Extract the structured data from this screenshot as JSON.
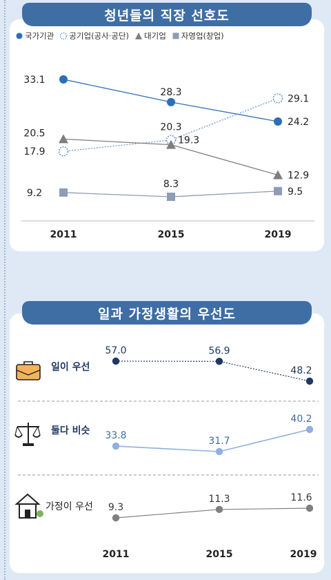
{
  "top_title": "청년들의 직장 선호도",
  "bottom_title": "일과 가정생활의 우선도",
  "chart_data": [
    {
      "type": "line",
      "title": "청년들의 직장 선호도",
      "x": [
        "2011",
        "2015",
        "2019"
      ],
      "series": [
        {
          "name": "국가기관",
          "values": [
            33.1,
            28.3,
            24.2
          ],
          "color": "#2f6db5",
          "marker": "circle"
        },
        {
          "name": "공기업(공사·공단)",
          "values": [
            17.9,
            20.3,
            29.1
          ],
          "color": "#6f96cf",
          "marker": "dotted-circle"
        },
        {
          "name": "대기업",
          "values": [
            20.5,
            19.3,
            12.9
          ],
          "color": "#7f7f7f",
          "marker": "triangle"
        },
        {
          "name": "자영업(창업)",
          "values": [
            9.2,
            8.3,
            9.5
          ],
          "color": "#8e9cb5",
          "marker": "square"
        }
      ],
      "legend": "top"
    },
    {
      "type": "line",
      "title": "일과 가정생활의 우선도",
      "x": [
        "2011",
        "2015",
        "2019"
      ],
      "series": [
        {
          "name": "일이 우선",
          "values": [
            57.0,
            56.9,
            48.2
          ],
          "color": "#1f3864",
          "icon": "briefcase-icon"
        },
        {
          "name": "둘다 비슷",
          "values": [
            33.8,
            31.7,
            40.2
          ],
          "color": "#8fb0e0",
          "icon": "scale-icon"
        },
        {
          "name": "가정이 우선",
          "values": [
            9.3,
            11.3,
            11.6
          ],
          "color": "#808080",
          "icon": "house-icon"
        }
      ]
    }
  ]
}
